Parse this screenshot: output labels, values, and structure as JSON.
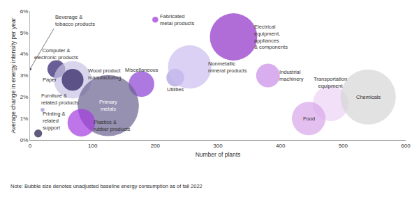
{
  "chart_data": {
    "type": "scatter",
    "marker": "bubble",
    "x_label": "Number of plants",
    "y_label": "Average change in energy intensity per year",
    "note": "Note: Bubble size denotes unadjusted baseline energy consumption as of fall 2022",
    "xlim": [
      0,
      600
    ],
    "xticks": [
      0,
      100,
      200,
      300,
      400,
      500,
      600
    ],
    "ylim": [
      0,
      6
    ],
    "yticks": [
      {
        "value": 0,
        "label": "0%"
      },
      {
        "value": 1,
        "label": "1%"
      },
      {
        "value": 2,
        "label": "2%"
      },
      {
        "value": 3,
        "label": "3%"
      },
      {
        "value": 4,
        "label": "4%"
      },
      {
        "value": 5,
        "label": "5%"
      },
      {
        "value": 6,
        "label": "6%"
      }
    ],
    "grid": false,
    "series": [
      {
        "name": "Fabricated\nmetal products",
        "color": "#9b30d9",
        "x": [
          200
        ],
        "values": [
          5.6
        ],
        "size": [
          36
        ]
      },
      {
        "name": "Electrical\nequipment,\nappliances\n& components",
        "color": "#8e2fc6",
        "x": [
          325
        ],
        "values": [
          4.8
        ],
        "size": [
          2304
        ]
      },
      {
        "name": "Computer &\nelectronic products",
        "color": "#2b1a6b",
        "x": [
          42
        ],
        "values": [
          3.3
        ],
        "size": [
          324
        ]
      },
      {
        "name": "Paper",
        "color": "#c9c3e6",
        "x": [
          68
        ],
        "values": [
          2.8
        ],
        "size": [
          1444
        ]
      },
      {
        "name": "Wood product\nmanufacturing",
        "color": "#271a5c",
        "x": [
          68
        ],
        "values": [
          2.8
        ],
        "size": [
          484
        ]
      },
      {
        "name": "Miscellaneous",
        "color": "#8a3fd1",
        "x": [
          178
        ],
        "values": [
          2.6
        ],
        "size": [
          676
        ]
      },
      {
        "name": "Utilities",
        "color": "#a99be0",
        "x": [
          232
        ],
        "values": [
          2.9
        ],
        "size": [
          324
        ]
      },
      {
        "name": "Nonmetallic\nmineral products",
        "color": "#cbbdf0",
        "x": [
          255
        ],
        "values": [
          3.4
        ],
        "size": [
          1936
        ]
      },
      {
        "name": "Industrial\nmachinery",
        "color": "#c98be8",
        "x": [
          380
        ],
        "values": [
          3.0
        ],
        "size": [
          576
        ]
      },
      {
        "name": "Transportation\nequipment",
        "color": "#ecd3f5",
        "x": [
          480
        ],
        "values": [
          1.7
        ],
        "size": [
          1296
        ]
      },
      {
        "name": "Chemicals",
        "color": "#d6d6d6",
        "x": [
          540
        ],
        "values": [
          2.0
        ],
        "size": [
          3136
        ]
      },
      {
        "name": "Food",
        "color": "#d9a5ea",
        "x": [
          445
        ],
        "values": [
          1.0
        ],
        "size": [
          1156
        ]
      },
      {
        "name": "Primary\nmetals",
        "color": "#6a6190",
        "x": [
          125
        ],
        "values": [
          1.6
        ],
        "size": [
          3844
        ]
      },
      {
        "name": "Plastics &\nrubber products",
        "color": "#a23be0",
        "x": [
          82
        ],
        "values": [
          0.8
        ],
        "size": [
          784
        ]
      },
      {
        "name": "Furniture &\nrelated products",
        "color": "#9d8fd8",
        "x": [
          20
        ],
        "values": [
          1.4
        ],
        "size": [
          16
        ]
      },
      {
        "name": "Printing &\nrelated\nsupport",
        "color": "#1c1446",
        "x": [
          13
        ],
        "values": [
          0.3
        ],
        "size": [
          64
        ]
      },
      {
        "name": "Beverage &\ntobacco products",
        "color": "#1c1446",
        "x": [
          0
        ],
        "values": [
          3.3
        ],
        "size": [
          9
        ]
      }
    ]
  }
}
